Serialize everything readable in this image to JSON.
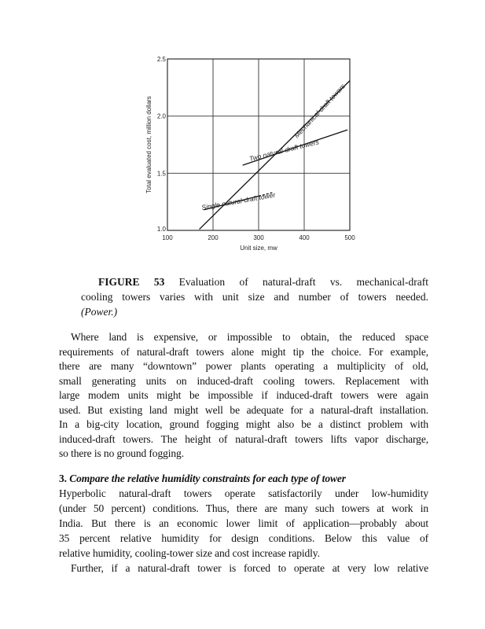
{
  "chart_data": {
    "type": "line",
    "xlabel": "Unit size, mw",
    "ylabel": "Total evaluated cost, million dollars",
    "xlim": [
      100,
      500
    ],
    "ylim": [
      1.0,
      2.5
    ],
    "xticks": [
      "100",
      "200",
      "300",
      "400",
      "500"
    ],
    "yticks": [
      "1.0",
      "1.5",
      "2.0",
      "2.5"
    ],
    "grid": true,
    "series": [
      {
        "name": "Mechanical-draft towers",
        "x": [
          170,
          500
        ],
        "y": [
          1.01,
          2.31
        ]
      },
      {
        "name": "Two natural-draft towers",
        "x": [
          265,
          495
        ],
        "y": [
          1.57,
          1.88
        ]
      },
      {
        "name": "Single natural-draft tower",
        "x": [
          180,
          300,
          330
        ],
        "y": [
          1.18,
          1.3,
          1.33
        ],
        "dashed_from_x": 300
      }
    ]
  },
  "caption": {
    "label": "FIGURE 53",
    "lines": [
      " Evaluation of natural-draft vs. mechanical-draft",
      "cooling towers varies with unit size and number of towers needed.",
      "(Power.)"
    ]
  },
  "paragraph1": [
    "Where land is expensive, or impossible to obtain, the reduced space",
    "requirements of natural-draft towers alone might tip the choice. For example,",
    "there are many “downtown” power plants operating a multiplicity of old,",
    "small generating units on induced-draft cooling towers. Replacement with",
    "large modem units might be impossible if induced-draft towers were again",
    "used. But existing land might well be adequate for a natural-draft installation.",
    "In a big-city location, ground fogging might also be a distinct problem with",
    "induced-draft towers. The height of natural-draft towers lifts vapor discharge,",
    "so there is no ground fogging."
  ],
  "heading": {
    "number": "3.",
    "text": " Compare the relative humidity constraints for each type of tower"
  },
  "paragraph2": [
    "Hyperbolic natural-draft towers operate satisfactorily under low-humidity",
    "(under 50 percent) conditions. Thus, there are many such towers at work in",
    "India. But there is an economic lower limit of application—probably about",
    "35 percent relative humidity for design conditions. Below this value of",
    "relative humidity, cooling-tower size and cost increase rapidly."
  ],
  "paragraph3": [
    "Further, if a natural-draft tower is forced to operate at very low relative"
  ]
}
